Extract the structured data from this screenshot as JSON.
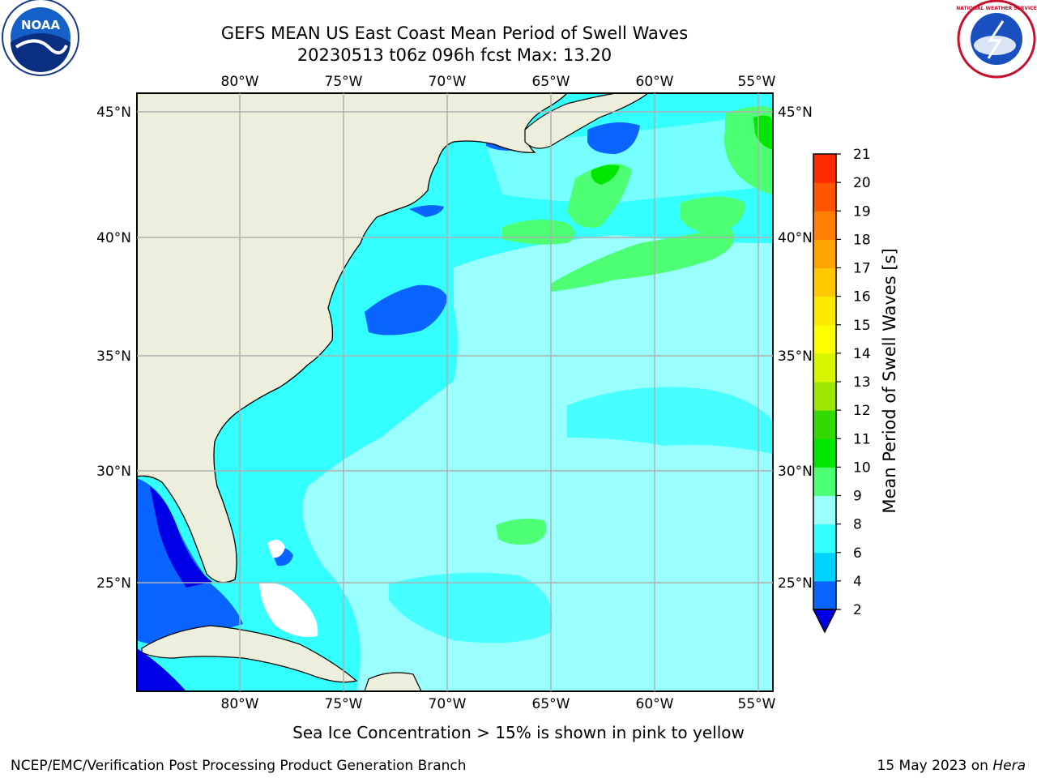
{
  "title": "GEFS MEAN US East Coast Mean Period of Swell Waves",
  "subtitle": "20230513 t06z 096h fcst   Max: 13.20",
  "colorbar_label": "Mean Period of Swell Waves [s]",
  "colorbar_ticks": [
    "2",
    "4",
    "6",
    "8",
    "9",
    "10",
    "11",
    "12",
    "13",
    "14",
    "15",
    "16",
    "17",
    "18",
    "19",
    "20",
    "21"
  ],
  "colorbar_colors": [
    "#0a64ff",
    "#00d2ff",
    "#33ffff",
    "#9affff",
    "#4cff73",
    "#00e600",
    "#33d900",
    "#9ce600",
    "#d8f500",
    "#ffff00",
    "#ffe800",
    "#ffc800",
    "#ffa500",
    "#ff7f00",
    "#ff5500",
    "#ff2a00",
    "#ff0000"
  ],
  "below_range_color": "#0000e6",
  "lon_labels": [
    "80°W",
    "75°W",
    "70°W",
    "65°W",
    "60°W",
    "55°W"
  ],
  "lat_labels": [
    "45°N",
    "40°N",
    "35°N",
    "30°N",
    "25°N"
  ],
  "sea_ice_note": "Sea Ice Concentration > 15% is shown in pink to yellow",
  "footer_left": "NCEP/EMC/Verification Post Processing Product Generation Branch",
  "footer_right_date": "15 May 2023 on ",
  "footer_right_machine": "Hera",
  "logos": {
    "noaa": "NOAA",
    "nws": "NATIONAL WEATHER SERVICE"
  },
  "colors": {
    "land": "#eeeedc",
    "ocean_base": "#33ffff",
    "grid": "#b0b0b0"
  }
}
